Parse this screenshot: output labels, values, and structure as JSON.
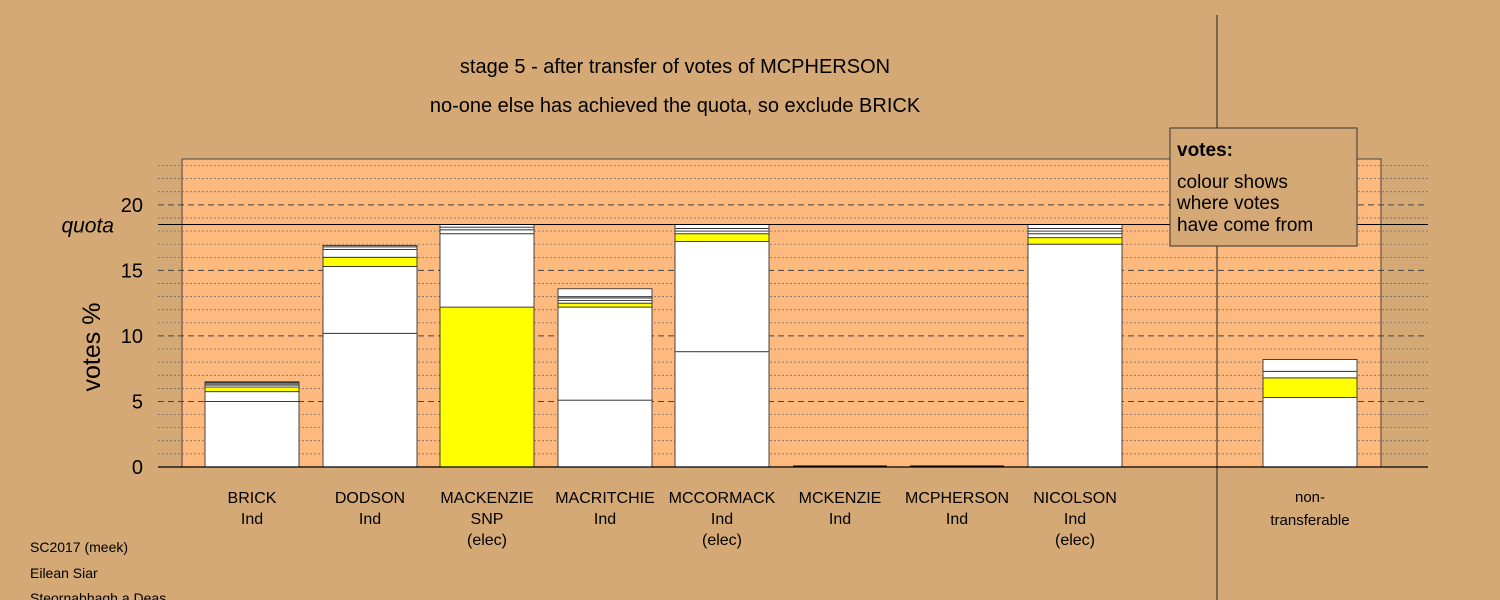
{
  "chart_data": {
    "type": "bar",
    "stacked": true,
    "title": "stage 5 - after transfer of votes of MCPHERSON",
    "subtitle": "no-one else has achieved the quota, so exclude BRICK",
    "ylabel": "votes %",
    "ylim": [
      0,
      23.5
    ],
    "yticks": [
      0,
      5,
      10,
      15,
      20
    ],
    "quota": 18.5,
    "quota_label": "quota",
    "grid": true,
    "legend": {
      "position": "top-right",
      "title": "votes:",
      "lines": [
        "colour shows",
        "where votes",
        "have come from"
      ]
    },
    "bars": [
      {
        "name": "BRICK",
        "party": "Ind",
        "status": "",
        "segments": [
          {
            "value": 5.0,
            "color": "#ffffff"
          },
          {
            "value": 0.75,
            "color": "#ffffff"
          },
          {
            "value": 0.35,
            "color": "#ffff00"
          },
          {
            "value": 0.15,
            "color": "#ffffff"
          },
          {
            "value": 0.1,
            "color": "#ffffff"
          },
          {
            "value": 0.1,
            "color": "#ffffff"
          },
          {
            "value": 0.05,
            "color": "#ffffff"
          }
        ]
      },
      {
        "name": "DODSON",
        "party": "Ind",
        "status": "",
        "segments": [
          {
            "value": 10.2,
            "color": "#ffffff"
          },
          {
            "value": 5.1,
            "color": "#ffffff"
          },
          {
            "value": 0.7,
            "color": "#ffff00"
          },
          {
            "value": 0.6,
            "color": "#ffffff"
          },
          {
            "value": 0.2,
            "color": "#ffffff"
          },
          {
            "value": 0.1,
            "color": "#ffffff"
          }
        ]
      },
      {
        "name": "MACKENZIE",
        "party": "SNP",
        "status": "(elec)",
        "segments": [
          {
            "value": 12.2,
            "color": "#ffff00"
          },
          {
            "value": 5.6,
            "color": "#ffffff"
          },
          {
            "value": 0.3,
            "color": "#ffffff"
          },
          {
            "value": 0.2,
            "color": "#ffffff"
          },
          {
            "value": 0.2,
            "color": "#ffffff"
          }
        ]
      },
      {
        "name": "MACRITCHIE",
        "party": "Ind",
        "status": "",
        "segments": [
          {
            "value": 5.1,
            "color": "#ffffff"
          },
          {
            "value": 7.1,
            "color": "#ffffff"
          },
          {
            "value": 0.3,
            "color": "#ffff00"
          },
          {
            "value": 0.2,
            "color": "#ffffff"
          },
          {
            "value": 0.2,
            "color": "#ffffff"
          },
          {
            "value": 0.1,
            "color": "#ffffff"
          },
          {
            "value": 0.6,
            "color": "#ffffff"
          }
        ]
      },
      {
        "name": "MCCORMACK",
        "party": "Ind",
        "status": "(elec)",
        "segments": [
          {
            "value": 8.8,
            "color": "#ffffff"
          },
          {
            "value": 8.4,
            "color": "#ffffff"
          },
          {
            "value": 0.6,
            "color": "#ffff00"
          },
          {
            "value": 0.2,
            "color": "#ffffff"
          },
          {
            "value": 0.2,
            "color": "#ffffff"
          },
          {
            "value": 0.3,
            "color": "#ffffff"
          }
        ]
      },
      {
        "name": "MCKENZIE",
        "party": "Ind",
        "status": "",
        "segments": []
      },
      {
        "name": "MCPHERSON",
        "party": "Ind",
        "status": "",
        "segments": []
      },
      {
        "name": "NICOLSON",
        "party": "Ind",
        "status": "(elec)",
        "segments": [
          {
            "value": 17.0,
            "color": "#ffffff"
          },
          {
            "value": 0.5,
            "color": "#ffff00"
          },
          {
            "value": 0.3,
            "color": "#ffffff"
          },
          {
            "value": 0.2,
            "color": "#ffffff"
          },
          {
            "value": 0.2,
            "color": "#ffffff"
          },
          {
            "value": 0.3,
            "color": "#ffffff"
          }
        ]
      }
    ],
    "non_transferable": {
      "label_line1": "non-",
      "label_line2": "transferable",
      "segments": [
        {
          "value": 5.3,
          "color": "#ffffff"
        },
        {
          "value": 1.5,
          "color": "#ffff00"
        },
        {
          "value": 0.5,
          "color": "#ffffff"
        },
        {
          "value": 0.9,
          "color": "#ffffff"
        }
      ]
    }
  },
  "footer": {
    "line1": "SC2017 (meek)",
    "line2": "Eilean Siar",
    "line3": "Steornabhagh a Deas"
  },
  "colors": {
    "background": "#d4a976",
    "plot": "#fdb97e",
    "grid": "#555555",
    "highlight": "#ffff00"
  }
}
